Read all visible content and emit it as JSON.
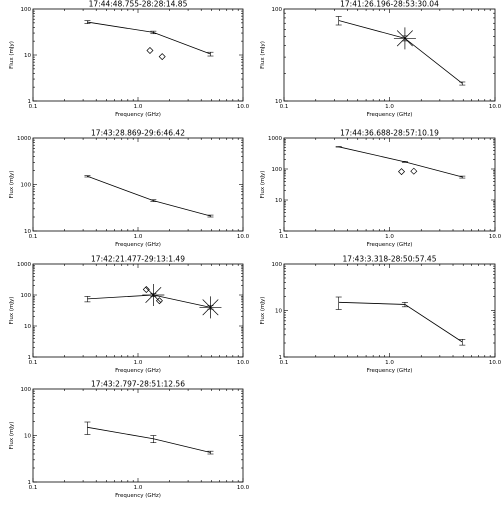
{
  "chart_data": [
    {
      "type": "scatter",
      "title": "17:44:48.755-28:28:14.85",
      "xlabel": "Frequency (GHz)",
      "ylabel": "Flux (mJy)",
      "xscale": "log",
      "yscale": "log",
      "xlim": [
        0.1,
        10.0
      ],
      "ylim": [
        1,
        100
      ],
      "xticks": [
        "0.1",
        "1.0",
        "10.0"
      ],
      "yticks": [
        "1",
        "10",
        "100"
      ],
      "series": [
        {
          "style": "line-errorbar",
          "x": [
            0.33,
            1.4,
            4.9
          ],
          "y": [
            52,
            31,
            10.5
          ],
          "yerr": [
            4,
            2,
            1
          ]
        },
        {
          "style": "diamond",
          "x": [
            1.3,
            1.7
          ],
          "y": [
            12.5,
            9.2
          ]
        }
      ]
    },
    {
      "type": "scatter",
      "title": "17:41:26.196-28:53:30.04",
      "xlabel": "Frequency (GHz)",
      "ylabel": "Flux (mJy)",
      "xscale": "log",
      "yscale": "log",
      "xlim": [
        0.1,
        10.0
      ],
      "ylim": [
        10,
        100
      ],
      "xticks": [
        "0.1",
        "1.0",
        "10.0"
      ],
      "yticks": [
        "10",
        "100"
      ],
      "series": [
        {
          "style": "line-errorbar",
          "x": [
            0.33,
            1.4,
            4.9
          ],
          "y": [
            75,
            48,
            15.5
          ],
          "yerr": [
            8,
            3,
            0.6
          ]
        },
        {
          "style": "star",
          "x": [
            1.4
          ],
          "y": [
            48
          ]
        }
      ]
    },
    {
      "type": "scatter",
      "title": "17:43:28.869-29:6:46.42",
      "xlabel": "Frequency (GHz)",
      "ylabel": "Flux (mJy)",
      "xscale": "log",
      "yscale": "log",
      "xlim": [
        0.1,
        10.0
      ],
      "ylim": [
        10,
        1000
      ],
      "xticks": [
        "0.1",
        "1.0",
        "10.0"
      ],
      "yticks": [
        "10",
        "100",
        "1000"
      ],
      "series": [
        {
          "style": "line-errorbar",
          "x": [
            0.33,
            1.4,
            4.9
          ],
          "y": [
            150,
            45,
            21
          ],
          "yerr": [
            5,
            2,
            1
          ]
        }
      ]
    },
    {
      "type": "scatter",
      "title": "17:44:36.688-28:57:10.19",
      "xlabel": "Frequency (GHz)",
      "ylabel": "Flux (mJy)",
      "xscale": "log",
      "yscale": "log",
      "xlim": [
        0.1,
        10.0
      ],
      "ylim": [
        1,
        1000
      ],
      "xticks": [
        "0.1",
        "1.0",
        "10.0"
      ],
      "yticks": [
        "1",
        "10",
        "100",
        "1000"
      ],
      "series": [
        {
          "style": "line-errorbar",
          "x": [
            0.33,
            1.4,
            4.9
          ],
          "y": [
            520,
            170,
            55
          ],
          "yerr": [
            10,
            6,
            4
          ]
        },
        {
          "style": "diamond",
          "x": [
            1.3,
            1.7
          ],
          "y": [
            82,
            85
          ]
        }
      ]
    },
    {
      "type": "scatter",
      "title": "17:42:21.477-29:13:1.49",
      "xlabel": "Frequency (GHz)",
      "ylabel": "Flux (mJy)",
      "xscale": "log",
      "yscale": "log",
      "xlim": [
        0.1,
        10.0
      ],
      "ylim": [
        1,
        1000
      ],
      "xticks": [
        "0.1",
        "1.0",
        "10.0"
      ],
      "yticks": [
        "1",
        "10",
        "100",
        "1000"
      ],
      "series": [
        {
          "style": "line-errorbar",
          "x": [
            0.33,
            1.4,
            4.9
          ],
          "y": [
            75,
            100,
            40
          ],
          "yerr": [
            15,
            10,
            5
          ]
        },
        {
          "style": "diamond",
          "x": [
            1.2,
            1.6
          ],
          "y": [
            150,
            65
          ]
        },
        {
          "style": "star",
          "x": [
            1.4,
            4.9
          ],
          "y": [
            100,
            40
          ]
        }
      ]
    },
    {
      "type": "scatter",
      "title": "17:43:3.318-28:50:57.45",
      "xlabel": "Frequency (GHz)",
      "ylabel": "Flux (mJy)",
      "xscale": "log",
      "yscale": "log",
      "xlim": [
        0.1,
        10.0
      ],
      "ylim": [
        1,
        100
      ],
      "xticks": [
        "0.1",
        "1.0",
        "10.0"
      ],
      "yticks": [
        "1",
        "10",
        "100"
      ],
      "series": [
        {
          "style": "line-errorbar",
          "x": [
            0.33,
            1.4,
            4.9
          ],
          "y": [
            15,
            13.5,
            2.1
          ],
          "yerr": [
            4.5,
            1.5,
            0.3
          ]
        }
      ]
    },
    {
      "type": "scatter",
      "title": "17:43:2.797-28:51:12.56",
      "xlabel": "Frequency (GHz)",
      "ylabel": "Flux (mJy)",
      "xscale": "log",
      "yscale": "log",
      "xlim": [
        0.1,
        10.0
      ],
      "ylim": [
        1,
        100
      ],
      "xticks": [
        "0.1",
        "1.0",
        "10.0"
      ],
      "yticks": [
        "1",
        "10",
        "100"
      ],
      "series": [
        {
          "style": "line-errorbar",
          "x": [
            0.33,
            1.4,
            4.9
          ],
          "y": [
            15,
            8.5,
            4.3
          ],
          "yerr": [
            4.5,
            1.5,
            0.3
          ]
        }
      ]
    }
  ]
}
